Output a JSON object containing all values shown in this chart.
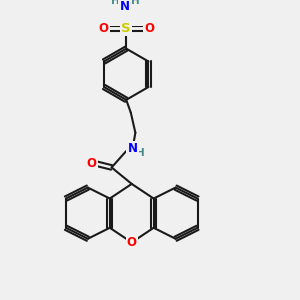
{
  "bg_color": "#f0f0f0",
  "bond_color": "#1a1a1a",
  "atom_colors": {
    "O": "#ff0000",
    "N": "#0000ff",
    "S": "#cccc00",
    "H": "#4a8a8a",
    "C": "#1a1a1a"
  },
  "figsize": [
    3.0,
    3.0
  ],
  "dpi": 100
}
